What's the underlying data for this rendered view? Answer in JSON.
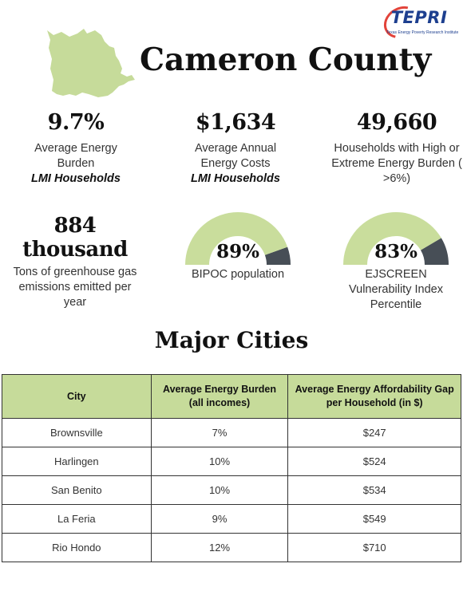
{
  "colors": {
    "accent_green": "#c6db9a",
    "gauge_green": "#c9dd9c",
    "gauge_dark": "#474e56",
    "logo_blue": "#1d3f8f",
    "logo_red": "#e2433a"
  },
  "logo": {
    "text": "TEPRI",
    "subtitle": "Texas Energy Poverty Research Institute"
  },
  "header": {
    "title": "Cameron County",
    "map_icon": "county-map-icon"
  },
  "stats": [
    {
      "value": "9.7%",
      "label": "Average Energy Burden",
      "emphasis": "LMI Households"
    },
    {
      "value": "$1,634",
      "label": "Average Annual Energy Costs",
      "emphasis": "LMI Households"
    },
    {
      "value": "49,660",
      "label": "Households with High or Extreme Energy Burden ( >6%)"
    },
    {
      "value": "884 thousand",
      "label": "Tons of greenhouse gas emissions emitted per year"
    }
  ],
  "gauges": [
    {
      "value": "89%",
      "fraction": 0.89,
      "label": "BIPOC population"
    },
    {
      "value": "83%",
      "fraction": 0.83,
      "label": "EJSCREEN Vulnerability Index Percentile"
    }
  ],
  "section_title": "Major Cities",
  "table": {
    "headers": [
      "City",
      "Average Energy Burden (all incomes)",
      "Average Energy Affordability Gap per Household (in $)"
    ],
    "rows": [
      [
        "Brownsville",
        "7%",
        "$247"
      ],
      [
        "Harlingen",
        "10%",
        "$524"
      ],
      [
        "San Benito",
        "10%",
        "$534"
      ],
      [
        "La Feria",
        "9%",
        "$549"
      ],
      [
        "Rio Hondo",
        "12%",
        "$710"
      ]
    ]
  }
}
